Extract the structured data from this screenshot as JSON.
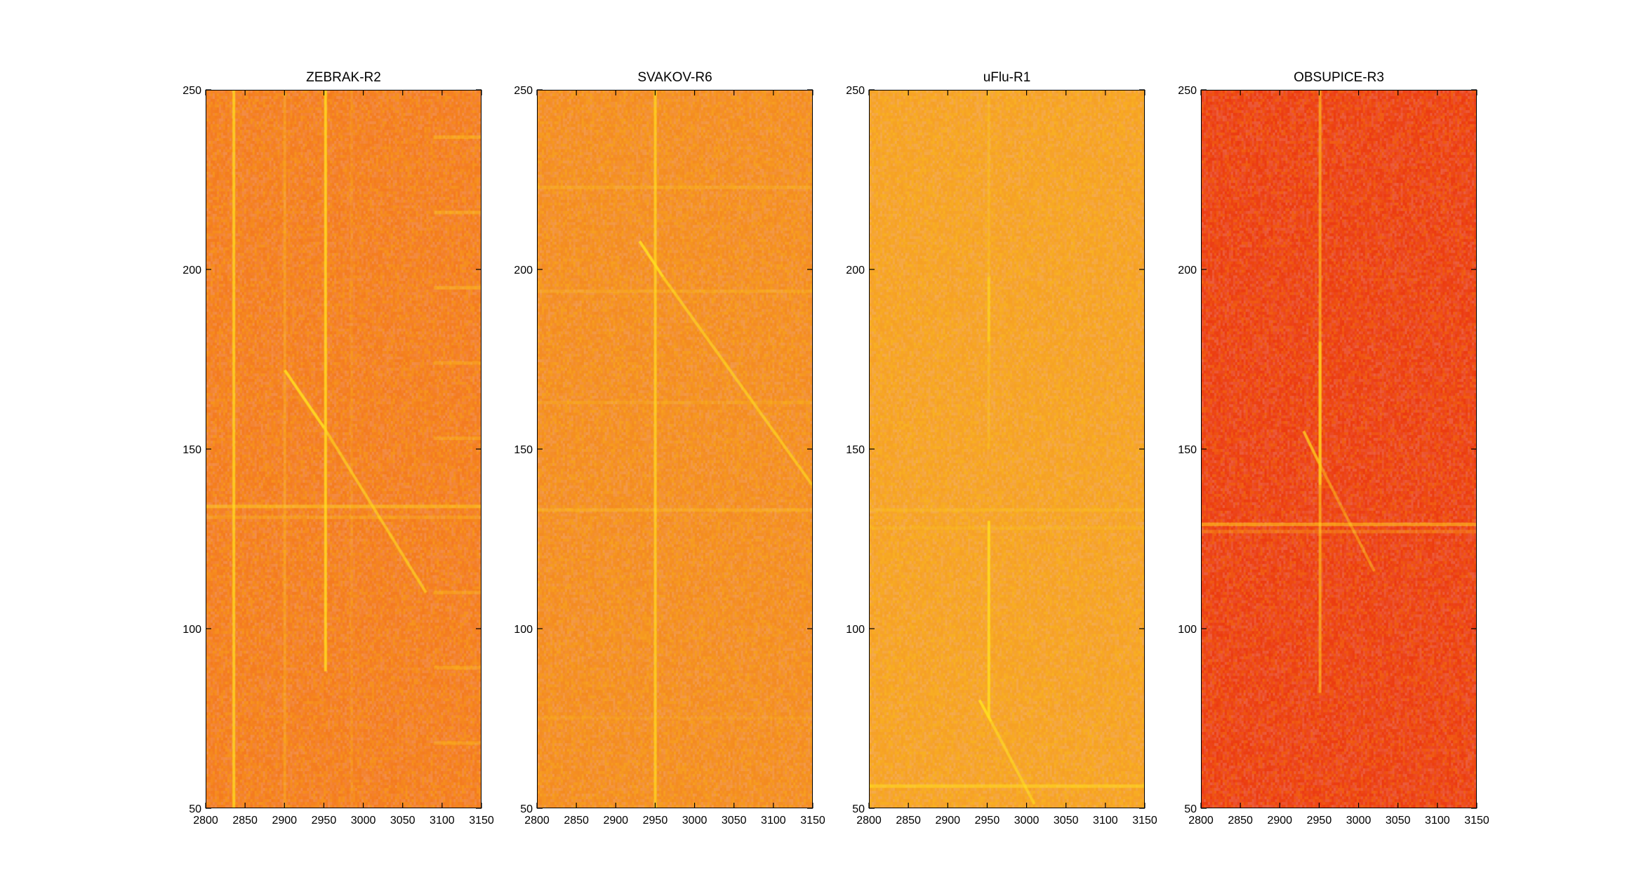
{
  "chart_data": [
    {
      "type": "heatmap",
      "title": "ZEBRAK-R2",
      "xlim": [
        2800,
        3150
      ],
      "ylim": [
        50,
        250
      ],
      "xticks": [
        "2800",
        "2850",
        "2900",
        "2950",
        "3000",
        "3050",
        "3100",
        "3150"
      ],
      "yticks": [
        "50",
        "100",
        "150",
        "200",
        "250"
      ],
      "background": "#f47a1e",
      "signal_color": "#ffe020",
      "vertical_lines": [
        {
          "x": 2835,
          "y_start": 50,
          "y_end": 250,
          "strength": 0.9
        },
        {
          "x": 2952,
          "y_start": 88,
          "y_end": 250,
          "strength": 1.0
        },
        {
          "x": 2900,
          "y_start": 50,
          "y_end": 250,
          "strength": 0.3
        },
        {
          "x": 2985,
          "y_start": 50,
          "y_end": 250,
          "strength": 0.15
        }
      ],
      "horizontal_lines": [
        {
          "y": 134,
          "strength": 0.8
        },
        {
          "y": 131,
          "strength": 0.4
        },
        {
          "y": 237,
          "x_start": 3090,
          "x_end": 3150,
          "strength": 0.6
        },
        {
          "y": 216,
          "x_start": 3090,
          "x_end": 3150,
          "strength": 0.6
        },
        {
          "y": 195,
          "x_start": 3090,
          "x_end": 3150,
          "strength": 0.6
        },
        {
          "y": 174,
          "x_start": 3090,
          "x_end": 3150,
          "strength": 0.5
        },
        {
          "y": 153,
          "x_start": 3090,
          "x_end": 3150,
          "strength": 0.5
        },
        {
          "y": 110,
          "x_start": 3090,
          "x_end": 3150,
          "strength": 0.5
        },
        {
          "y": 89,
          "x_start": 3090,
          "x_end": 3150,
          "strength": 0.5
        },
        {
          "y": 68,
          "x_start": 3090,
          "x_end": 3150,
          "strength": 0.5
        }
      ],
      "diagonal_tracks": [
        {
          "x1": 2900,
          "y1": 172,
          "x2": 2950,
          "y2": 156,
          "strength": 1.0
        },
        {
          "x1": 2950,
          "y1": 156,
          "x2": 3080,
          "y2": 110,
          "strength": 0.7
        }
      ]
    },
    {
      "type": "heatmap",
      "title": "SVAKOV-R6",
      "xlim": [
        2800,
        3150
      ],
      "ylim": [
        50,
        250
      ],
      "xticks": [
        "2800",
        "2850",
        "2900",
        "2950",
        "3000",
        "3050",
        "3100",
        "3150"
      ],
      "yticks": [
        "50",
        "100",
        "150",
        "200",
        "250"
      ],
      "background": "#f48a20",
      "signal_color": "#ffe020",
      "vertical_lines": [
        {
          "x": 2950,
          "y_start": 50,
          "y_end": 250,
          "strength": 0.85
        }
      ],
      "horizontal_lines": [
        {
          "y": 223,
          "strength": 0.4
        },
        {
          "y": 194,
          "strength": 0.4
        },
        {
          "y": 163,
          "strength": 0.3
        },
        {
          "y": 133,
          "strength": 0.5
        },
        {
          "y": 75,
          "strength": 0.2
        }
      ],
      "diagonal_tracks": [
        {
          "x1": 2930,
          "y1": 208,
          "x2": 2960,
          "y2": 198,
          "strength": 1.0
        },
        {
          "x1": 2960,
          "y1": 198,
          "x2": 3150,
          "y2": 140,
          "strength": 0.7
        }
      ]
    },
    {
      "type": "heatmap",
      "title": "uFlu-R1",
      "xlim": [
        2800,
        3150
      ],
      "ylim": [
        50,
        250
      ],
      "xticks": [
        "2800",
        "2850",
        "2900",
        "2950",
        "3000",
        "3050",
        "3100",
        "3150"
      ],
      "yticks": [
        "50",
        "100",
        "150",
        "200",
        "250"
      ],
      "background": "#f6a024",
      "signal_color": "#ffe020",
      "vertical_lines": [
        {
          "x": 2952,
          "y_start": 75,
          "y_end": 130,
          "strength": 1.0
        },
        {
          "x": 2952,
          "y_start": 150,
          "y_end": 250,
          "strength": 0.3
        },
        {
          "x": 2952,
          "y_start": 180,
          "y_end": 198,
          "strength": 0.6
        }
      ],
      "horizontal_lines": [
        {
          "y": 56,
          "strength": 1.0
        },
        {
          "y": 133,
          "strength": 0.4
        },
        {
          "y": 128,
          "strength": 0.3
        }
      ],
      "diagonal_tracks": [
        {
          "x1": 2940,
          "y1": 80,
          "x2": 2955,
          "y2": 74,
          "strength": 1.0
        },
        {
          "x1": 2955,
          "y1": 74,
          "x2": 3010,
          "y2": 51,
          "strength": 0.7
        }
      ]
    },
    {
      "type": "heatmap",
      "title": "OBSUPICE-R3",
      "xlim": [
        2800,
        3150
      ],
      "ylim": [
        50,
        250
      ],
      "xticks": [
        "2800",
        "2850",
        "2900",
        "2950",
        "3000",
        "3050",
        "3100",
        "3150"
      ],
      "yticks": [
        "50",
        "100",
        "150",
        "200",
        "250"
      ],
      "background": "#ec3a10",
      "signal_color": "#ffd020",
      "vertical_lines": [
        {
          "x": 2951,
          "y_start": 82,
          "y_end": 250,
          "strength": 0.7
        },
        {
          "x": 2951,
          "y_start": 140,
          "y_end": 180,
          "strength": 0.9
        }
      ],
      "horizontal_lines": [
        {
          "y": 129,
          "strength": 1.0
        },
        {
          "y": 127,
          "strength": 0.5
        }
      ],
      "diagonal_tracks": [
        {
          "x1": 2930,
          "y1": 155,
          "x2": 2950,
          "y2": 146,
          "strength": 0.9
        },
        {
          "x1": 2950,
          "y1": 146,
          "x2": 3020,
          "y2": 116,
          "strength": 0.55
        }
      ]
    }
  ]
}
